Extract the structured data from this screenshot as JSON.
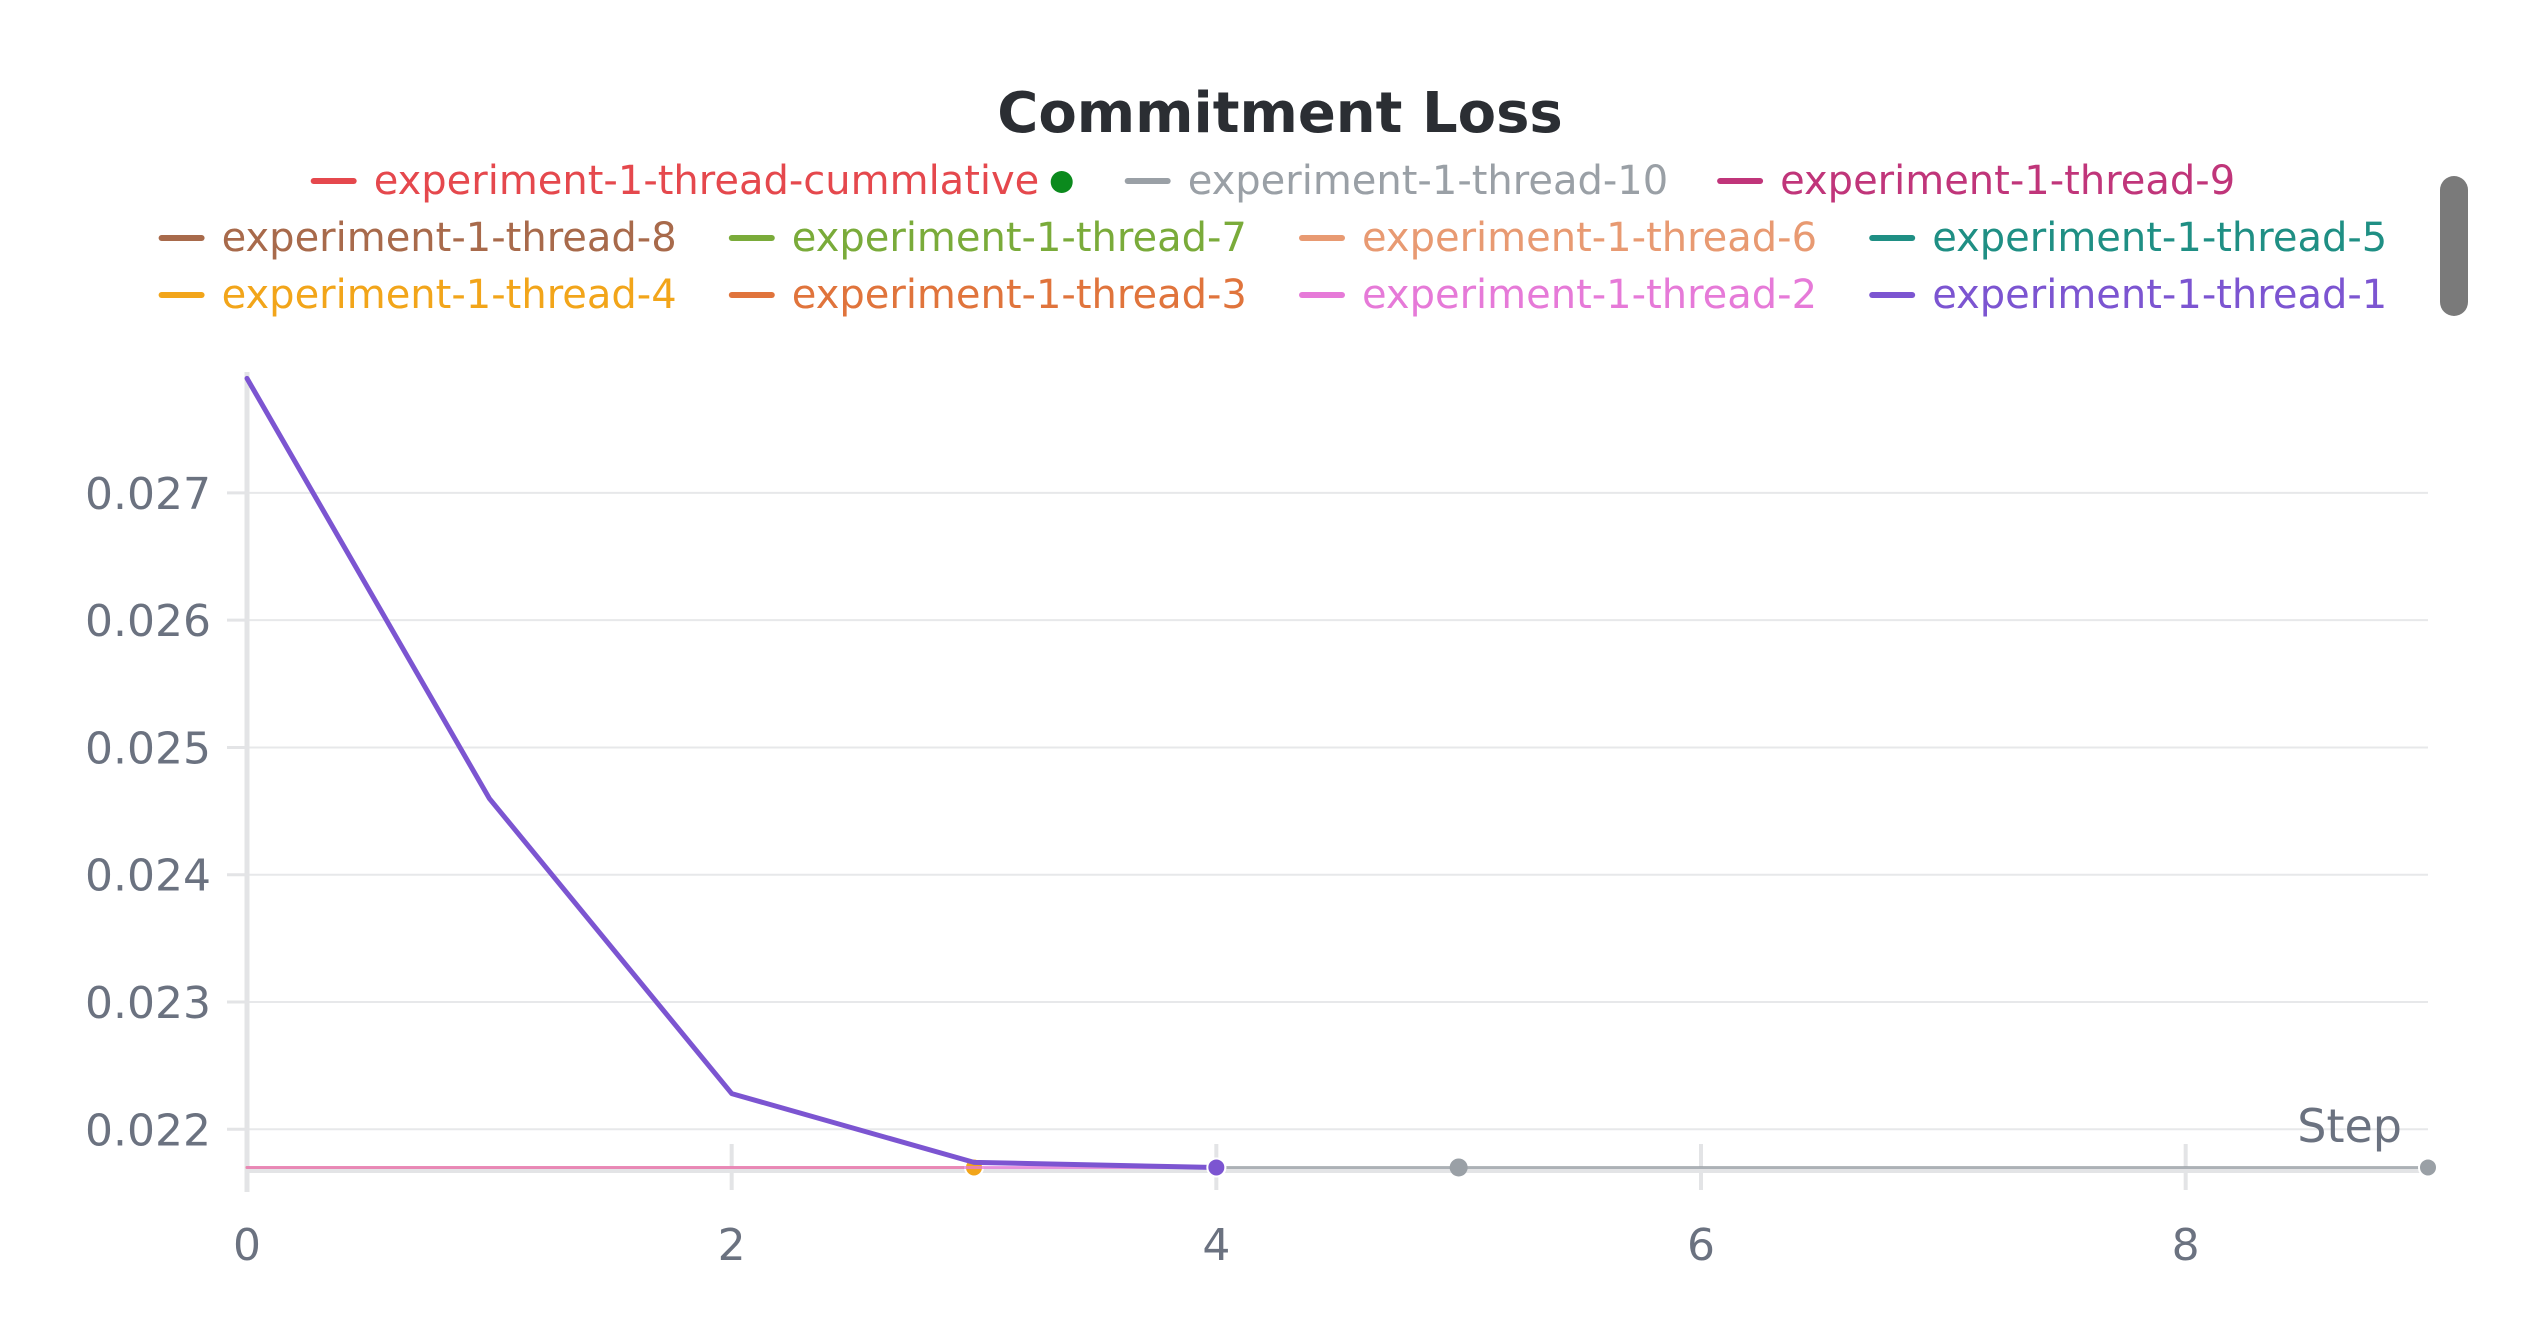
{
  "chart_data": {
    "type": "line",
    "title": "Commitment Loss",
    "xlabel": "Step",
    "ylabel": "",
    "xlim": [
      0,
      9
    ],
    "ylim": [
      0.02168,
      0.02795
    ],
    "x_ticks": [
      0,
      2,
      4,
      6,
      8
    ],
    "y_ticks": [
      0.022,
      0.023,
      0.024,
      0.025,
      0.026,
      0.027
    ],
    "y_tick_labels": [
      "0.022",
      "0.023",
      "0.024",
      "0.025",
      "0.026",
      "0.027"
    ],
    "grid": true,
    "legend_position": "top",
    "series": [
      {
        "name": "experiment-1-thread-cummlative",
        "color": "#e5484d",
        "marker_color": "#0b8a1d",
        "x": [
          9
        ],
        "y": [
          0.0217
        ]
      },
      {
        "name": "experiment-1-thread-10",
        "color": "#9aa0a6",
        "x": [
          4,
          5,
          6,
          7,
          8,
          9
        ],
        "y": [
          0.0217,
          0.0217,
          0.0217,
          0.0217,
          0.0217,
          0.0217
        ]
      },
      {
        "name": "experiment-1-thread-9",
        "color": "#c0357a",
        "x": [],
        "y": []
      },
      {
        "name": "experiment-1-thread-8",
        "color": "#a86a4b",
        "x": [],
        "y": []
      },
      {
        "name": "experiment-1-thread-7",
        "color": "#7aab3a",
        "x": [],
        "y": []
      },
      {
        "name": "experiment-1-thread-6",
        "color": "#e89a72",
        "x": [],
        "y": []
      },
      {
        "name": "experiment-1-thread-5",
        "color": "#1f8f84",
        "x": [],
        "y": []
      },
      {
        "name": "experiment-1-thread-4",
        "color": "#f2a51a",
        "x": [
          0,
          1,
          2,
          3
        ],
        "y": [
          0.0217,
          0.0217,
          0.0217,
          0.0217
        ]
      },
      {
        "name": "experiment-1-thread-3",
        "color": "#e0743c",
        "x": [],
        "y": []
      },
      {
        "name": "experiment-1-thread-2",
        "color": "#e67ad8",
        "x": [
          0,
          1,
          2,
          3,
          4
        ],
        "y": [
          0.0217,
          0.0217,
          0.0217,
          0.0217,
          0.0217
        ]
      },
      {
        "name": "experiment-1-thread-1",
        "color": "#7c55d1",
        "x": [
          0,
          1,
          2,
          3,
          4
        ],
        "y": [
          0.0279,
          0.0246,
          0.02228,
          0.02174,
          0.0217
        ]
      }
    ]
  }
}
